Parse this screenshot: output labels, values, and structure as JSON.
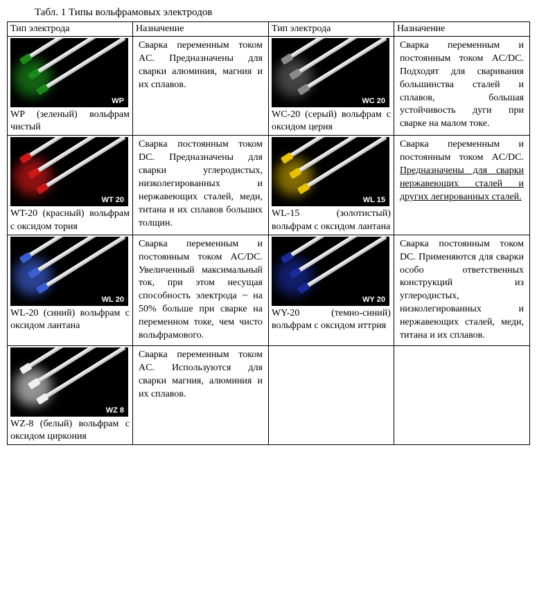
{
  "title": "Табл. 1 Типы вольфрамовых электродов",
  "headers": {
    "type": "Тип электрода",
    "purpose": "Назначение"
  },
  "rows": [
    {
      "left": {
        "tip_color": "#1a8b1a",
        "glow_color": "#1a8b1a",
        "img_label": "WP",
        "caption": "WP (зеленый) вольфрам чистый"
      },
      "left_purpose": "Сварка переменным током AC. Предназначены для сварки алюминия, магния и их сплавов.",
      "right": {
        "tip_color": "#8a8a8a",
        "glow_color": "#606060",
        "img_label": "WC 20",
        "caption": "WC-20 (серый) вольфрам с оксидом церия"
      },
      "right_purpose": "Сварка переменным и постоянным током AC/DC. Подходят для сваривания большинства сталей и сплавов, большая устойчивость дуги при сварке на малом токе."
    },
    {
      "left": {
        "tip_color": "#cc1818",
        "glow_color": "#cc1818",
        "img_label": "WT 20",
        "caption": "WT-20 (красный) вольфрам с оксидом тория"
      },
      "left_purpose": "Сварка постоянным током DC. Предназначены для сварки углеродистых, низколегированных и нержавеющих сталей, меди, титана и их сплавов больших толщин.",
      "right": {
        "tip_color": "#e6c200",
        "glow_color": "#b89800",
        "img_label": "WL 15",
        "caption": "WL-15 (золотистый) вольфрам с оксидом лантана"
      },
      "right_purpose_html": "Сварка переменным и постоянным током AC/DC. <span class=\"underlined\">Предназначены для сварки нержавеющих сталей и других легированных сталей.</span>"
    },
    {
      "left": {
        "tip_color": "#3a5fd0",
        "glow_color": "#3a5fd0",
        "img_label": "WL 20",
        "caption": "WL-20 (синий) вольфрам с оксидом лантана"
      },
      "left_purpose": "Сварка переменным и постоянным током AC/DC. Увеличенный максимальный ток, при этом несущая способность электрода ~ на 50% больше при сварке на переменном токе, чем чисто вольфрамового.",
      "right": {
        "tip_color": "#1a2a9a",
        "glow_color": "#1a2a9a",
        "img_label": "WY 20",
        "caption": "WY-20 (темно-синий) вольфрам с оксидом иттрия"
      },
      "right_purpose": "Сварка постоянным током DC. Применяются для сварки особо ответственных конструкций из углеродистых, низколегированных и нержавеющих сталей, меди, титана и их сплавов."
    },
    {
      "left": {
        "tip_color": "#f0f0f0",
        "glow_color": "#d0d0d0",
        "img_label": "WZ 8",
        "caption": "WZ-8 (белый) вольфрам с оксидом циркония"
      },
      "left_purpose": "Сварка переменным током AC. Используются для сварки магния, алюминия и их сплавов.",
      "right": null,
      "right_purpose": ""
    }
  ]
}
